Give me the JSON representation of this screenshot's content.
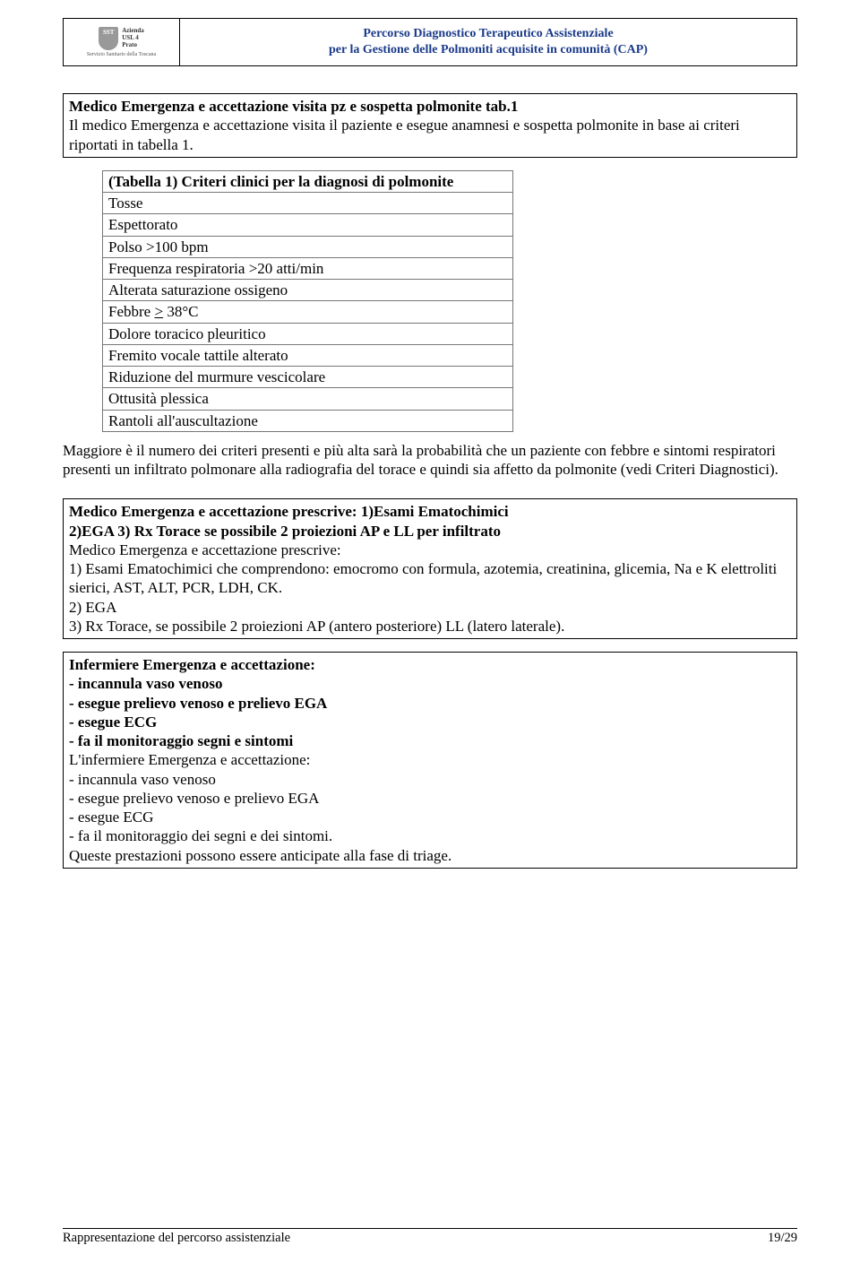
{
  "header": {
    "logo_code": "SST",
    "logo_text": "Azienda\nUSL 4\nPrato",
    "logo_sub": "Servizio Sanitario della Toscana",
    "title_line1": "Percorso Diagnostico Terapeutico Assistenziale",
    "title_line2": "per la Gestione delle Polmoniti acquisite in comunità (CAP)"
  },
  "block1": {
    "title": "Medico Emergenza e accettazione visita pz e sospetta polmonite tab.1",
    "body": "Il medico Emergenza e accettazione visita il paziente e esegue anamnesi e sospetta polmonite in base ai criteri riportati in tabella 1."
  },
  "criteria": {
    "header": "(Tabella 1) Criteri clinici per la diagnosi di polmonite",
    "rows": [
      "Tosse",
      "Espettorato",
      "Polso >100 bpm",
      "Frequenza respiratoria >20 atti/min",
      "Alterata saturazione ossigeno",
      "Febbre > 38°C",
      "Dolore toracico pleuritico",
      "Fremito vocale tattile alterato",
      "Riduzione del murmure vescicolare",
      "Ottusità plessica",
      "Rantoli all'auscultazione"
    ]
  },
  "para1": "Maggiore è il numero  dei criteri presenti e più alta sarà la probabilità che un paziente con febbre e sintomi respiratori presenti un infiltrato polmonare alla radiografia del torace e quindi sia affetto da polmonite (vedi Criteri Diagnostici).",
  "block2": {
    "title_line1": "Medico Emergenza e accettazione prescrive: 1)Esami Ematochimici",
    "title_line2": "2)EGA 3) Rx Torace se possibile 2 proiezioni AP e LL per infiltrato",
    "line1": "Medico Emergenza e accettazione prescrive:",
    "line2": "1) Esami Ematochimici che comprendono: emocromo con formula, azotemia, creatinina, glicemia, Na e K elettroliti sierici, AST, ALT, PCR, LDH, CK.",
    "line3": "2) EGA",
    "line4": "3) Rx Torace, se possibile 2 proiezioni AP (antero posteriore) LL (latero laterale)."
  },
  "block3": {
    "t1": "Infermiere Emergenza e accettazione:",
    "t2": "- incannula vaso venoso",
    "t3": "- esegue prelievo venoso e prelievo EGA",
    "t4": "- esegue ECG",
    "t5": "- fa il monitoraggio segni e sintomi",
    "b1": "L'infermiere Emergenza e accettazione:",
    "b2": "- incannula vaso venoso",
    "b3": "- esegue prelievo venoso e prelievo EGA",
    "b4": "- esegue ECG",
    "b5": "- fa il monitoraggio dei segni e dei sintomi.",
    "b6": "Queste prestazioni possono essere anticipate alla fase di triage."
  },
  "footer": {
    "left": "Rappresentazione del percorso assistenziale",
    "right": "19/29"
  }
}
